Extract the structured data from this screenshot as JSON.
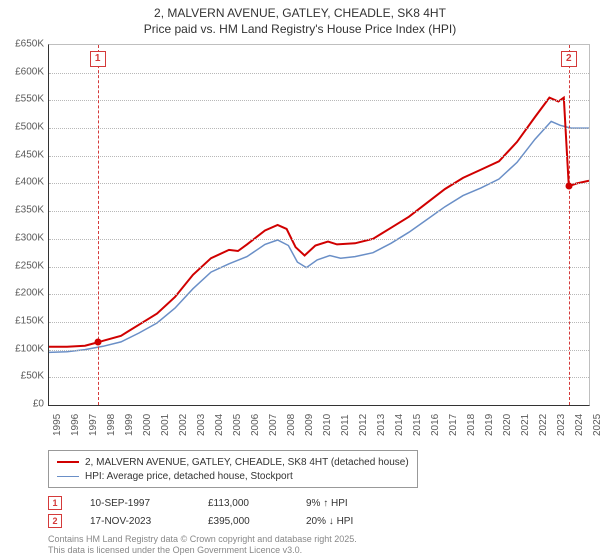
{
  "title": {
    "line1": "2, MALVERN AVENUE, GATLEY, CHEADLE, SK8 4HT",
    "line2": "Price paid vs. HM Land Registry's House Price Index (HPI)"
  },
  "chart": {
    "type": "line",
    "background_color": "#ffffff",
    "grid_color": "#b8b8b8",
    "axis_color": "#333333",
    "x_range": [
      1995,
      2025
    ],
    "y_range": [
      0,
      650000
    ],
    "y_ticks": [
      0,
      50000,
      100000,
      150000,
      200000,
      250000,
      300000,
      350000,
      400000,
      450000,
      500000,
      550000,
      600000,
      650000
    ],
    "y_tick_labels": [
      "£0",
      "£50K",
      "£100K",
      "£150K",
      "£200K",
      "£250K",
      "£300K",
      "£350K",
      "£400K",
      "£450K",
      "£500K",
      "£550K",
      "£600K",
      "£650K"
    ],
    "x_ticks": [
      1995,
      1996,
      1997,
      1998,
      1999,
      2000,
      2001,
      2002,
      2003,
      2004,
      2005,
      2006,
      2007,
      2008,
      2009,
      2010,
      2011,
      2012,
      2013,
      2014,
      2015,
      2016,
      2017,
      2018,
      2019,
      2020,
      2021,
      2022,
      2023,
      2024,
      2025
    ],
    "label_fontsize": 10,
    "label_color": "#5a5a5a",
    "series": {
      "property": {
        "label": "2, MALVERN AVENUE, GATLEY, CHEADLE, SK8 4HT (detached house)",
        "color": "#d00000",
        "line_width": 2,
        "points": [
          [
            1995.0,
            105000
          ],
          [
            1996.0,
            105000
          ],
          [
            1997.0,
            107000
          ],
          [
            1997.7,
            113000
          ],
          [
            1998.0,
            116000
          ],
          [
            1999.0,
            125000
          ],
          [
            2000.0,
            145000
          ],
          [
            2001.0,
            165000
          ],
          [
            2002.0,
            195000
          ],
          [
            2003.0,
            235000
          ],
          [
            2004.0,
            265000
          ],
          [
            2005.0,
            280000
          ],
          [
            2005.5,
            278000
          ],
          [
            2006.0,
            290000
          ],
          [
            2007.0,
            315000
          ],
          [
            2007.7,
            325000
          ],
          [
            2008.2,
            318000
          ],
          [
            2008.7,
            285000
          ],
          [
            2009.2,
            270000
          ],
          [
            2009.8,
            288000
          ],
          [
            2010.5,
            295000
          ],
          [
            2011.0,
            290000
          ],
          [
            2012.0,
            292000
          ],
          [
            2013.0,
            300000
          ],
          [
            2014.0,
            320000
          ],
          [
            2015.0,
            340000
          ],
          [
            2016.0,
            365000
          ],
          [
            2017.0,
            390000
          ],
          [
            2018.0,
            410000
          ],
          [
            2019.0,
            425000
          ],
          [
            2020.0,
            440000
          ],
          [
            2021.0,
            475000
          ],
          [
            2022.0,
            520000
          ],
          [
            2022.8,
            555000
          ],
          [
            2023.3,
            548000
          ],
          [
            2023.6,
            555000
          ],
          [
            2023.88,
            395000
          ],
          [
            2024.3,
            400000
          ],
          [
            2025.0,
            405000
          ]
        ]
      },
      "hpi": {
        "label": "HPI: Average price, detached house, Stockport",
        "color": "#6a8fc7",
        "line_width": 1.5,
        "points": [
          [
            1995.0,
            95000
          ],
          [
            1996.0,
            96000
          ],
          [
            1997.0,
            100000
          ],
          [
            1998.0,
            106000
          ],
          [
            1999.0,
            114000
          ],
          [
            2000.0,
            130000
          ],
          [
            2001.0,
            148000
          ],
          [
            2002.0,
            175000
          ],
          [
            2003.0,
            210000
          ],
          [
            2004.0,
            240000
          ],
          [
            2005.0,
            255000
          ],
          [
            2006.0,
            268000
          ],
          [
            2007.0,
            290000
          ],
          [
            2007.7,
            298000
          ],
          [
            2008.3,
            288000
          ],
          [
            2008.8,
            258000
          ],
          [
            2009.3,
            248000
          ],
          [
            2009.9,
            262000
          ],
          [
            2010.6,
            270000
          ],
          [
            2011.2,
            265000
          ],
          [
            2012.0,
            268000
          ],
          [
            2013.0,
            275000
          ],
          [
            2014.0,
            292000
          ],
          [
            2015.0,
            312000
          ],
          [
            2016.0,
            335000
          ],
          [
            2017.0,
            358000
          ],
          [
            2018.0,
            378000
          ],
          [
            2019.0,
            392000
          ],
          [
            2020.0,
            408000
          ],
          [
            2021.0,
            438000
          ],
          [
            2022.0,
            480000
          ],
          [
            2022.9,
            512000
          ],
          [
            2023.4,
            505000
          ],
          [
            2024.0,
            500000
          ],
          [
            2025.0,
            500000
          ]
        ]
      }
    },
    "markers": [
      {
        "id": "1",
        "x": 1997.7,
        "y": 113000,
        "marker_color": "#d43a3a"
      },
      {
        "id": "2",
        "x": 2023.88,
        "y": 395000,
        "marker_color": "#d43a3a"
      }
    ]
  },
  "legend": {
    "border_color": "#999999",
    "fontsize": 10
  },
  "sales": [
    {
      "marker": "1",
      "date": "10-SEP-1997",
      "price": "£113,000",
      "diff": "9% ↑ HPI"
    },
    {
      "marker": "2",
      "date": "17-NOV-2023",
      "price": "£395,000",
      "diff": "20% ↓ HPI"
    }
  ],
  "footnote": {
    "line1": "Contains HM Land Registry data © Crown copyright and database right 2025.",
    "line2": "This data is licensed under the Open Government Licence v3.0."
  }
}
